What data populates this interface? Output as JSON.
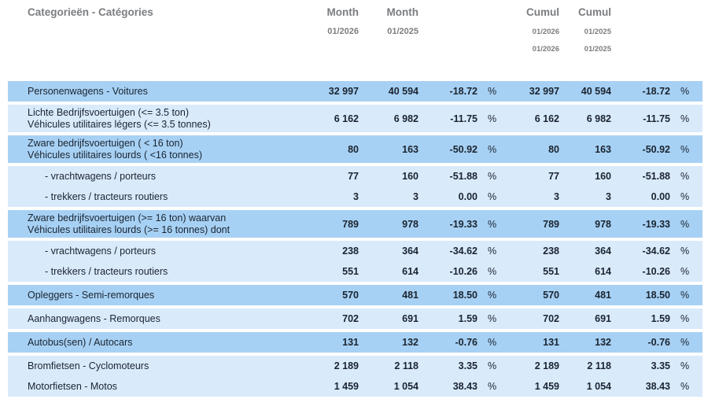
{
  "header": {
    "category_label": "Categorieën - Catégories",
    "month1": {
      "label": "Month",
      "period": "01/2026"
    },
    "month2": {
      "label": "Month",
      "period": "01/2025"
    },
    "cumul1": {
      "label": "Cumul",
      "period_line1": "01/2026",
      "period_line2": "01/2026"
    },
    "cumul2": {
      "label": "Cumul",
      "period_line1": "01/2025",
      "period_line2": "01/2025"
    }
  },
  "percent_sign": "%",
  "colors": {
    "row_dark": "#a7d1f4",
    "row_light": "#d9eafb",
    "header_text": "#7b7d80",
    "body_text": "#1a2430",
    "background": "#ffffff"
  },
  "rows": [
    {
      "label_line1": "Personenwagens - Voitures",
      "label_line2": "",
      "shade": "dark",
      "indent": false,
      "gap_before": true,
      "month_2026": "32 997",
      "month_2025": "40 594",
      "month_pct": "-18.72",
      "cumul_2026": "32 997",
      "cumul_2025": "40 594",
      "cumul_pct": "-18.72"
    },
    {
      "label_line1": "Lichte Bedrijfsvoertuigen (<= 3.5 ton)",
      "label_line2": "Véhicules utilitaires légers (<= 3.5 tonnes)",
      "shade": "light",
      "indent": false,
      "gap_before": true,
      "month_2026": "6 162",
      "month_2025": "6 982",
      "month_pct": "-11.75",
      "cumul_2026": "6 162",
      "cumul_2025": "6 982",
      "cumul_pct": "-11.75"
    },
    {
      "label_line1": "Zware bedrijfsvoertuigen ( < 16 ton)",
      "label_line2": "Véhicules utilitaires lourds ( <16 tonnes)",
      "shade": "dark",
      "indent": false,
      "gap_before": true,
      "month_2026": "80",
      "month_2025": "163",
      "month_pct": "-50.92",
      "cumul_2026": "80",
      "cumul_2025": "163",
      "cumul_pct": "-50.92"
    },
    {
      "label_line1": "- vrachtwagens / porteurs",
      "label_line2": "",
      "shade": "light",
      "indent": true,
      "gap_before": true,
      "month_2026": "77",
      "month_2025": "160",
      "month_pct": "-51.88",
      "cumul_2026": "77",
      "cumul_2025": "160",
      "cumul_pct": "-51.88"
    },
    {
      "label_line1": "- trekkers / tracteurs routiers",
      "label_line2": "",
      "shade": "light",
      "indent": true,
      "gap_before": false,
      "month_2026": "3",
      "month_2025": "3",
      "month_pct": "0.00",
      "cumul_2026": "3",
      "cumul_2025": "3",
      "cumul_pct": "0.00"
    },
    {
      "label_line1": "Zware bedrijfsvoertuigen (>= 16 ton) waarvan",
      "label_line2": "Véhicules utilitaires lourds (>= 16 tonnes) dont",
      "shade": "dark",
      "indent": false,
      "gap_before": true,
      "month_2026": "789",
      "month_2025": "978",
      "month_pct": "-19.33",
      "cumul_2026": "789",
      "cumul_2025": "978",
      "cumul_pct": "-19.33"
    },
    {
      "label_line1": "- vrachtwagens / porteurs",
      "label_line2": "",
      "shade": "light",
      "indent": true,
      "gap_before": true,
      "month_2026": "238",
      "month_2025": "364",
      "month_pct": "-34.62",
      "cumul_2026": "238",
      "cumul_2025": "364",
      "cumul_pct": "-34.62"
    },
    {
      "label_line1": "- trekkers / tracteurs routiers",
      "label_line2": "",
      "shade": "light",
      "indent": true,
      "gap_before": false,
      "month_2026": "551",
      "month_2025": "614",
      "month_pct": "-10.26",
      "cumul_2026": "551",
      "cumul_2025": "614",
      "cumul_pct": "-10.26"
    },
    {
      "label_line1": "Opleggers - Semi-remorques",
      "label_line2": "",
      "shade": "dark",
      "indent": false,
      "gap_before": true,
      "month_2026": "570",
      "month_2025": "481",
      "month_pct": "18.50",
      "cumul_2026": "570",
      "cumul_2025": "481",
      "cumul_pct": "18.50"
    },
    {
      "label_line1": "Aanhangwagens - Remorques",
      "label_line2": "",
      "shade": "light",
      "indent": false,
      "gap_before": true,
      "month_2026": "702",
      "month_2025": "691",
      "month_pct": "1.59",
      "cumul_2026": "702",
      "cumul_2025": "691",
      "cumul_pct": "1.59"
    },
    {
      "label_line1": "Autobus(sen) / Autocars",
      "label_line2": "",
      "shade": "dark",
      "indent": false,
      "gap_before": true,
      "month_2026": "131",
      "month_2025": "132",
      "month_pct": "-0.76",
      "cumul_2026": "131",
      "cumul_2025": "132",
      "cumul_pct": "-0.76"
    },
    {
      "label_line1": "Bromfietsen - Cyclomoteurs",
      "label_line2": "",
      "shade": "light",
      "indent": false,
      "gap_before": true,
      "month_2026": "2 189",
      "month_2025": "2 118",
      "month_pct": "3.35",
      "cumul_2026": "2 189",
      "cumul_2025": "2 118",
      "cumul_pct": "3.35"
    },
    {
      "label_line1": "Motorfietsen - Motos",
      "label_line2": "",
      "shade": "light",
      "indent": false,
      "gap_before": false,
      "month_2026": "1 459",
      "month_2025": "1 054",
      "month_pct": "38.43",
      "cumul_2026": "1 459",
      "cumul_2025": "1 054",
      "cumul_pct": "38.43"
    }
  ]
}
